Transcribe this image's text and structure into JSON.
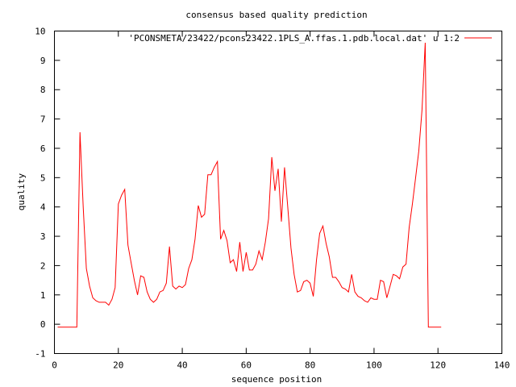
{
  "chart_data": {
    "type": "line",
    "title": "consensus based quality prediction",
    "xlabel": "sequence position",
    "ylabel": "quality",
    "xlim": [
      0,
      140
    ],
    "ylim": [
      -1,
      10
    ],
    "xticks": [
      0,
      20,
      40,
      60,
      80,
      100,
      120,
      140
    ],
    "yticks": [
      -1,
      0,
      1,
      2,
      3,
      4,
      5,
      6,
      7,
      8,
      9,
      10
    ],
    "grid": false,
    "legend_position": "top-right",
    "series": [
      {
        "name": "'PCONSMETA/23422/pcons23422.1PLS_A.ffas.1.pdb.local.dat' u 1:2",
        "color": "#ff0000",
        "x": [
          1,
          2,
          3,
          4,
          5,
          6,
          7,
          8,
          9,
          10,
          11,
          12,
          13,
          14,
          15,
          16,
          17,
          18,
          19,
          20,
          21,
          22,
          23,
          24,
          25,
          26,
          27,
          28,
          29,
          30,
          31,
          32,
          33,
          34,
          35,
          36,
          37,
          38,
          39,
          40,
          41,
          42,
          43,
          44,
          45,
          46,
          47,
          48,
          49,
          50,
          51,
          52,
          53,
          54,
          55,
          56,
          57,
          58,
          59,
          60,
          61,
          62,
          63,
          64,
          65,
          66,
          67,
          68,
          69,
          70,
          71,
          72,
          73,
          74,
          75,
          76,
          77,
          78,
          79,
          80,
          81,
          82,
          83,
          84,
          85,
          86,
          87,
          88,
          89,
          90,
          91,
          92,
          93,
          94,
          95,
          96,
          97,
          98,
          99,
          100,
          101,
          102,
          103,
          104,
          105,
          106,
          107,
          108,
          109,
          110,
          111,
          112,
          113,
          114,
          115,
          116,
          117,
          118,
          119,
          120,
          121
        ],
        "y": [
          -0.1,
          -0.1,
          -0.1,
          -0.1,
          -0.1,
          -0.1,
          -0.1,
          6.55,
          4.0,
          1.9,
          1.3,
          0.9,
          0.8,
          0.75,
          0.75,
          0.75,
          0.65,
          0.85,
          1.25,
          4.1,
          4.4,
          4.6,
          2.7,
          2.1,
          1.5,
          1.0,
          1.65,
          1.6,
          1.1,
          0.85,
          0.75,
          0.85,
          1.1,
          1.15,
          1.4,
          2.65,
          1.3,
          1.2,
          1.3,
          1.25,
          1.35,
          1.9,
          2.2,
          2.9,
          4.05,
          3.65,
          3.75,
          5.1,
          5.1,
          5.35,
          5.55,
          2.9,
          3.2,
          2.85,
          2.1,
          2.2,
          1.8,
          2.8,
          1.8,
          2.45,
          1.85,
          1.85,
          2.05,
          2.5,
          2.2,
          2.8,
          3.6,
          5.7,
          4.55,
          5.3,
          3.5,
          5.35,
          4.0,
          2.6,
          1.7,
          1.1,
          1.15,
          1.45,
          1.5,
          1.4,
          0.95,
          2.2,
          3.1,
          3.35,
          2.75,
          2.3,
          1.6,
          1.6,
          1.45,
          1.25,
          1.2,
          1.1,
          1.7,
          1.1,
          0.95,
          0.9,
          0.8,
          0.75,
          0.9,
          0.85,
          0.85,
          1.5,
          1.45,
          0.9,
          1.3,
          1.7,
          1.65,
          1.55,
          1.95,
          2.05,
          3.3,
          4.1,
          5.0,
          5.9,
          7.3,
          9.6,
          -0.1,
          -0.1,
          -0.1,
          -0.1,
          -0.1
        ]
      }
    ]
  }
}
